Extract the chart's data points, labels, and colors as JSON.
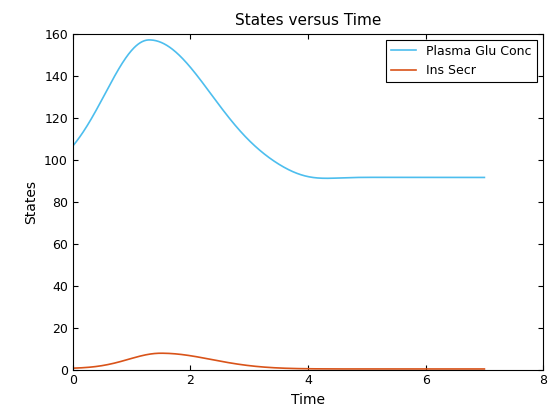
{
  "title": "States versus Time",
  "xlabel": "Time",
  "ylabel": "States",
  "line1_label": "Plasma Glu Conc",
  "line2_label": "Ins Secr",
  "line1_color": "#4DBEEE",
  "line2_color": "#D95319",
  "xlim": [
    0,
    8
  ],
  "ylim": [
    0,
    160
  ],
  "yticks": [
    0,
    20,
    40,
    60,
    80,
    100,
    120,
    140,
    160
  ],
  "xticks": [
    0,
    2,
    4,
    6,
    8
  ],
  "background_color": "#FFFFFF",
  "legend_loc": "upper right",
  "figwidth": 5.6,
  "figheight": 4.2,
  "dpi": 100
}
